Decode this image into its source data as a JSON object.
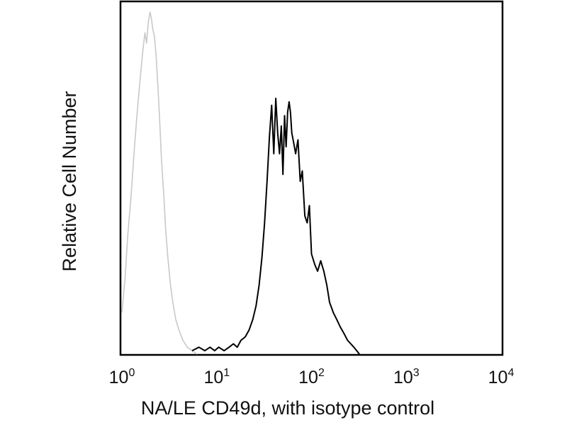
{
  "chart_data": {
    "type": "line",
    "title": "",
    "xlabel": "NA/LE CD49d, with isotype control",
    "ylabel": "Relative Cell Number",
    "x_scale": "log",
    "xlim": [
      1,
      10000
    ],
    "ylim": [
      0,
      1
    ],
    "grid": false,
    "legend": "none",
    "x_ticks": [
      {
        "base": "10",
        "exp": "0",
        "value": 1
      },
      {
        "base": "10",
        "exp": "1",
        "value": 10
      },
      {
        "base": "10",
        "exp": "2",
        "value": 100
      },
      {
        "base": "10",
        "exp": "3",
        "value": 1000
      },
      {
        "base": "10",
        "exp": "4",
        "value": 10000
      }
    ],
    "series": [
      {
        "color": "#c8c8c8",
        "x": [
          1.0,
          1.08,
          1.15,
          1.25,
          1.35,
          1.45,
          1.55,
          1.65,
          1.75,
          1.82,
          1.9,
          1.98,
          2.05,
          2.12,
          2.2,
          2.3,
          2.4,
          2.5,
          2.62,
          2.75,
          2.9,
          3.05,
          3.25,
          3.45,
          3.7,
          4.0,
          4.4,
          4.9,
          5.5,
          6.2
        ],
        "y": [
          0.12,
          0.22,
          0.34,
          0.46,
          0.59,
          0.7,
          0.79,
          0.87,
          0.93,
          0.9,
          0.96,
          0.99,
          0.97,
          0.94,
          0.92,
          0.86,
          0.77,
          0.68,
          0.56,
          0.47,
          0.36,
          0.28,
          0.2,
          0.15,
          0.1,
          0.07,
          0.04,
          0.02,
          0.01,
          0.0
        ]
      },
      {
        "color": "#000000",
        "x": [
          5.5,
          6.5,
          7.5,
          8.5,
          9.5,
          10.5,
          12,
          13.5,
          15,
          16.5,
          18,
          20,
          22,
          24,
          26,
          28,
          30,
          32,
          34,
          36,
          38,
          40,
          42,
          44,
          46,
          48,
          50,
          52,
          54,
          56,
          58,
          60,
          62,
          65,
          68,
          72,
          76,
          80,
          85,
          90,
          95,
          100,
          108,
          116,
          125,
          135,
          145,
          155,
          170,
          185,
          200,
          220,
          240,
          260,
          280,
          300,
          320
        ],
        "y": [
          0.01,
          0.02,
          0.01,
          0.02,
          0.01,
          0.02,
          0.01,
          0.02,
          0.03,
          0.02,
          0.04,
          0.05,
          0.07,
          0.1,
          0.14,
          0.2,
          0.28,
          0.38,
          0.5,
          0.63,
          0.72,
          0.58,
          0.74,
          0.64,
          0.58,
          0.66,
          0.52,
          0.69,
          0.6,
          0.7,
          0.73,
          0.7,
          0.64,
          0.61,
          0.58,
          0.62,
          0.5,
          0.53,
          0.4,
          0.38,
          0.43,
          0.29,
          0.26,
          0.24,
          0.27,
          0.24,
          0.2,
          0.15,
          0.12,
          0.1,
          0.08,
          0.06,
          0.04,
          0.03,
          0.02,
          0.01,
          0.0
        ]
      }
    ]
  }
}
